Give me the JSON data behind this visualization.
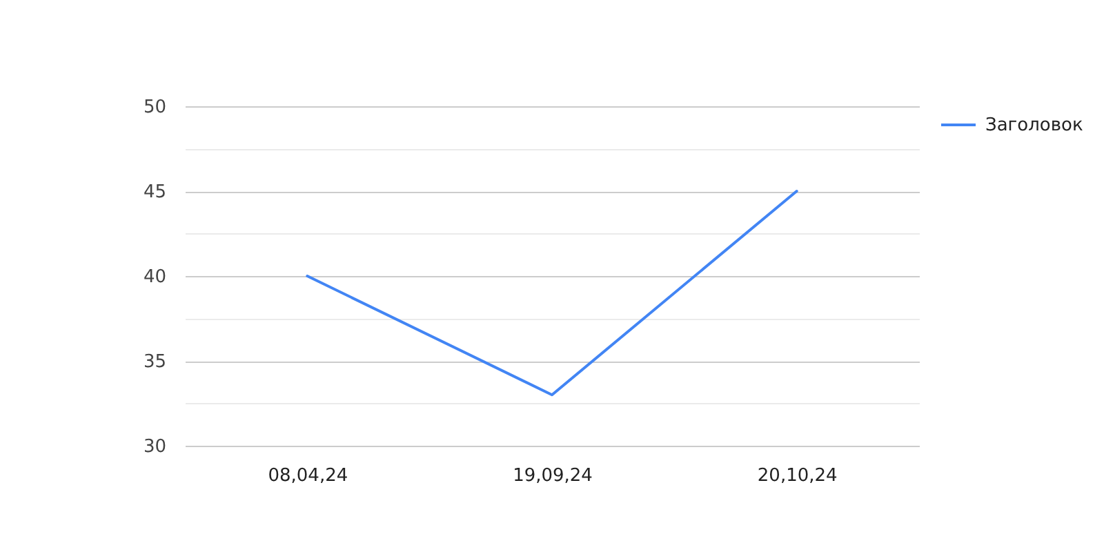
{
  "chart_data": {
    "type": "line",
    "categories": [
      "08,04,24",
      "19,09,24",
      "20,10,24"
    ],
    "series": [
      {
        "name": "Заголовок",
        "color": "#4285f4",
        "values": [
          40,
          33,
          45
        ]
      }
    ],
    "ylim": [
      30,
      50
    ],
    "yticks": [
      30,
      {
        "value": 32.5,
        "label": null
      },
      35,
      {
        "value": 37.5,
        "label": null
      },
      40,
      {
        "value": 42.5,
        "label": null
      },
      45,
      {
        "value": 47.5,
        "label": null
      },
      50
    ],
    "grid": "y",
    "legend": "right",
    "marker": "none",
    "line_style": "solid"
  }
}
